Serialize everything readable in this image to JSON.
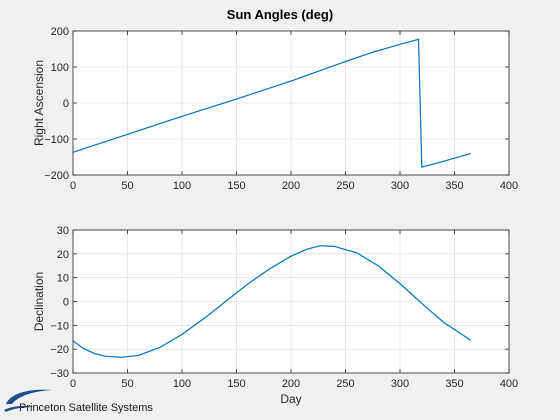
{
  "title": "Sun Angles (deg)",
  "logo": {
    "text": "Princeton Satellite Systems",
    "colors": {
      "swoosh": "#1f4e8c"
    }
  },
  "colors": {
    "series": "#0072bd"
  },
  "chart_data": [
    {
      "type": "line",
      "xlabel": "",
      "ylabel": "Right Ascension",
      "xlim": [
        0,
        400
      ],
      "ylim": [
        -200,
        200
      ],
      "xticks": [
        0,
        50,
        100,
        150,
        200,
        250,
        300,
        350,
        400
      ],
      "yticks": [
        -200,
        -100,
        0,
        100,
        200
      ],
      "grid": true,
      "series": [
        {
          "x": [
            0,
            25,
            50,
            75,
            100,
            125,
            150,
            175,
            200,
            225,
            250,
            275,
            300,
            317,
            320,
            340,
            365
          ],
          "values": [
            -137,
            -112,
            -87,
            -62,
            -37,
            -13,
            11,
            36,
            61,
            88,
            115,
            141,
            163,
            177,
            -178,
            -162,
            -140
          ]
        }
      ]
    },
    {
      "type": "line",
      "xlabel": "Day",
      "ylabel": "Declination",
      "xlim": [
        0,
        400
      ],
      "ylim": [
        -30,
        30
      ],
      "xticks": [
        0,
        50,
        100,
        150,
        200,
        250,
        300,
        350,
        400
      ],
      "yticks": [
        -30,
        -20,
        -10,
        0,
        10,
        20,
        30
      ],
      "grid": true,
      "series": [
        {
          "x": [
            0,
            10,
            20,
            30,
            45,
            60,
            80,
            100,
            120,
            140,
            160,
            180,
            200,
            215,
            227,
            240,
            260,
            280,
            300,
            320,
            340,
            365
          ],
          "values": [
            -16.5,
            -19.8,
            -21.9,
            -23.0,
            -23.4,
            -22.6,
            -19.2,
            -13.8,
            -7.2,
            0.0,
            7.2,
            13.6,
            19.0,
            22.0,
            23.4,
            23.1,
            20.5,
            15.0,
            7.5,
            -0.8,
            -8.7,
            -16.3
          ]
        }
      ]
    }
  ]
}
